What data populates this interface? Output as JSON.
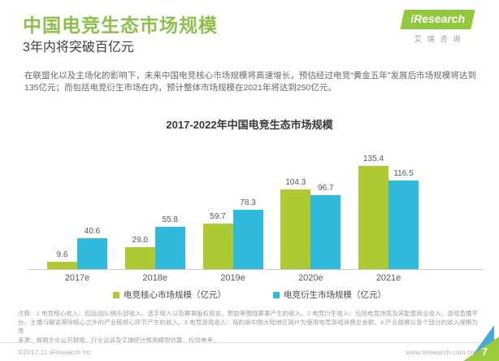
{
  "header": {
    "title": "中国电竞生态市场规模",
    "subtitle": "3年内将突破百亿元",
    "logo": {
      "brand": "iResearch",
      "brand_cn": "艾瑞咨询"
    }
  },
  "intro": "在联盟化以及主场化的影响下，未来中国电竞核心市场规模将高速增长，预估经过电竞“黄金五年”发展后市场规模将达到135亿元；而包括电竞衍生市场在内，预计整体市场规模在2021年将达到250亿元。",
  "chart_data": {
    "type": "bar",
    "title": "2017-2022年中国电竞生态市场规模",
    "categories": [
      "2017e",
      "2018e",
      "2019e",
      "2020e",
      "2021e"
    ],
    "series": [
      {
        "name": "电竞核心市场规模（亿元）",
        "color": "#adc934",
        "values": [
          9.6,
          29.0,
          59.7,
          104.3,
          135.4
        ],
        "labels": [
          "9.6",
          "29.0",
          "59.7",
          "104.3",
          "135.4"
        ]
      },
      {
        "name": "电竞衍生市场规模（亿元）",
        "color": "#2eb9dd",
        "values": [
          40.6,
          55.8,
          78.3,
          96.7,
          116.5
        ],
        "labels": [
          "40.6",
          "55.8",
          "78.3",
          "96.7",
          "116.5"
        ]
      }
    ],
    "xlabel": "",
    "ylabel": "",
    "ylim": [
      0,
      150
    ],
    "grid": false,
    "legend_position": "bottom"
  },
  "footnote": {
    "note": "注释：1.电竞核心收入：包括战队/俱乐部收入、选手收入以及赛事版权收益，赞助等围绕赛事产生的收入。2.电竞衍生收入：包括电竞场馆及其配套商业收入、游戏直播平台、主播与解说等除核心之外的产业链核心环节产生的收入。3.电竞游戏收入：指的是中国大陆地区用户为使用电竞游戏消费总金额。4.产业规模以各个部分的收入规模为准",
    "source": "来源：根据企业公开财报、行业访谈及艾瑞统计预测模型估算，仅供参考。"
  },
  "footer": {
    "copyright": "©2017.11 iResearch Inc",
    "website": "www.iresearch.com.cn",
    "page_number": "7"
  }
}
